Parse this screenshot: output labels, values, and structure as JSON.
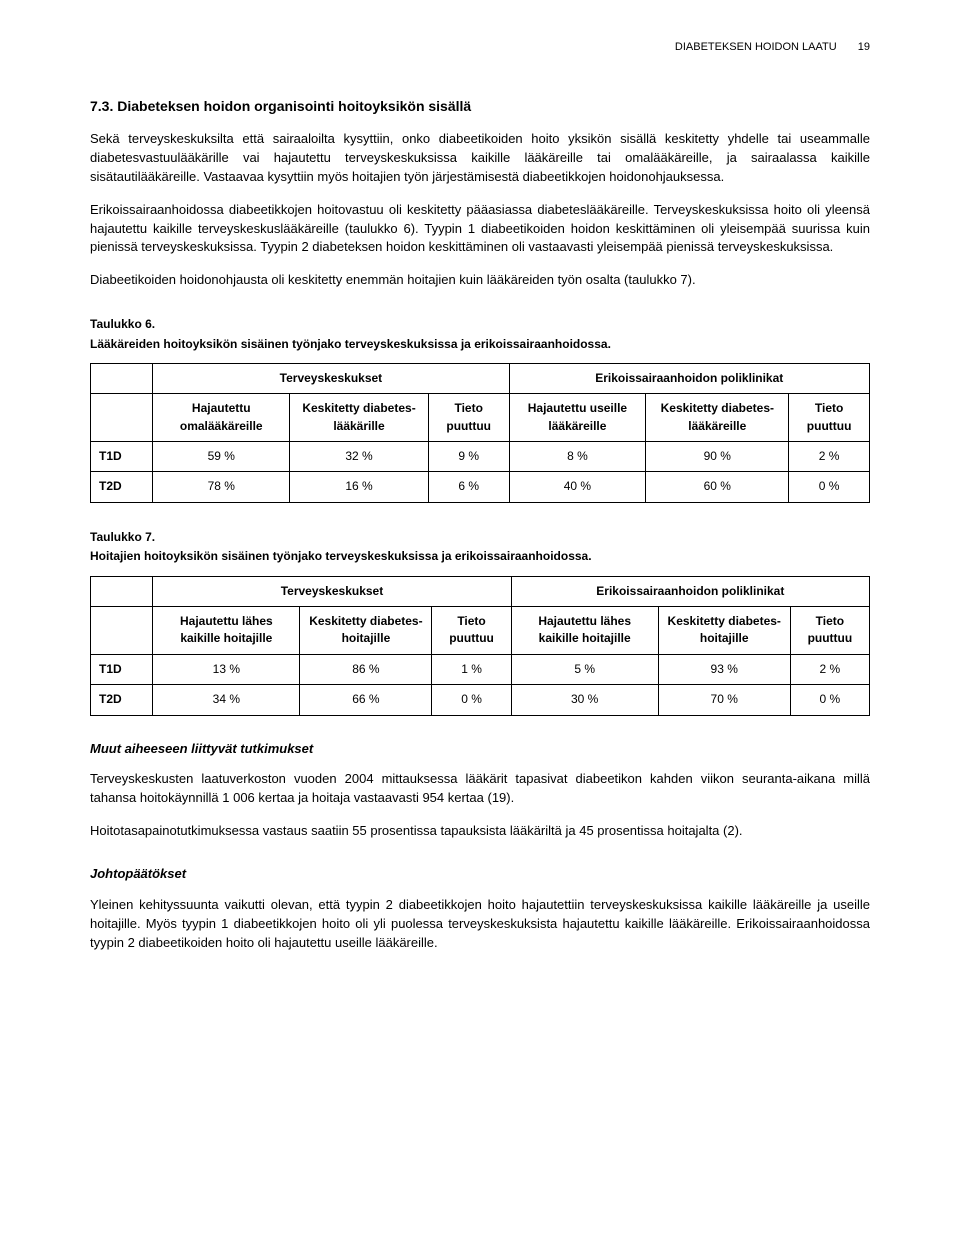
{
  "header": {
    "title": "DIABETEKSEN HOIDON LAATU",
    "page_number": "19"
  },
  "section": {
    "number_title": "7.3. Diabeteksen hoidon organisointi hoitoyksikön sisällä",
    "p1": "Sekä terveyskeskuksilta että sairaaloilta kysyttiin, onko diabeetikoiden hoito yksikön sisällä keskitetty yhdelle tai useammalle diabetesvastuulääkärille vai hajautettu terveyskeskuksissa kaikille lääkäreille tai omalääkäreille, ja sairaalassa kaikille sisätautilääkäreille. Vastaavaa kysyttiin myös hoitajien työn järjestämisestä diabeetikkojen hoidonohjauksessa.",
    "p2": "Erikoissairaanhoidossa diabeetikkojen hoitovastuu oli keskitetty pääasiassa diabeteslääkäreille. Terveyskeskuksissa hoito oli yleensä hajautettu kaikille terveyskeskuslääkäreille (taulukko 6). Tyypin 1 diabeetikoiden hoidon keskittäminen oli yleisempää suurissa kuin pienissä terveyskeskuksissa. Tyypin 2 diabeteksen hoidon keskittäminen oli vastaavasti yleisempää pienissä terveyskeskuksissa.",
    "p3": "Diabeetikoiden hoidonohjausta oli keskitetty enemmän hoitajien kuin lääkäreiden työn osalta (taulukko 7)."
  },
  "table6": {
    "caption": "Taulukko 6.",
    "subcaption": "Lääkäreiden hoitoyksikön sisäinen työnjako terveyskeskuksissa ja erikoissairaanhoidossa.",
    "group_headers": [
      "Terveyskeskukset",
      "Erikoissairaanhoidon poliklinikat"
    ],
    "sub_headers": [
      "Hajautettu omalääkäreille",
      "Keskitetty diabetes-lääkärille",
      "Tieto puuttuu",
      "Hajautettu useille lääkäreille",
      "Keskitetty diabetes-lääkäreille",
      "Tieto puuttuu"
    ],
    "rows": [
      {
        "label": "T1D",
        "cells": [
          "59 %",
          "32 %",
          "9 %",
          "8 %",
          "90 %",
          "2 %"
        ]
      },
      {
        "label": "T2D",
        "cells": [
          "78 %",
          "16 %",
          "6 %",
          "40 %",
          "60 %",
          "0 %"
        ]
      }
    ]
  },
  "table7": {
    "caption": "Taulukko 7.",
    "subcaption": "Hoitajien hoitoyksikön sisäinen työnjako terveyskeskuksissa ja erikoissairaanhoidossa.",
    "group_headers": [
      "Terveyskeskukset",
      "Erikoissairaanhoidon poliklinikat"
    ],
    "sub_headers": [
      "Hajautettu lähes kaikille hoitajille",
      "Keskitetty diabetes-hoitajille",
      "Tieto puuttuu",
      "Hajautettu lähes kaikille hoitajille",
      "Keskitetty diabetes-hoitajille",
      "Tieto puuttuu"
    ],
    "rows": [
      {
        "label": "T1D",
        "cells": [
          "13 %",
          "86 %",
          "1 %",
          "5 %",
          "93 %",
          "2 %"
        ]
      },
      {
        "label": "T2D",
        "cells": [
          "34 %",
          "66 %",
          "0 %",
          "30 %",
          "70 %",
          "0 %"
        ]
      }
    ]
  },
  "related": {
    "heading": "Muut aiheeseen liittyvät tutkimukset",
    "p1": "Terveyskeskusten laatuverkoston vuoden 2004 mittauksessa lääkärit tapasivat diabeetikon kahden viikon seuranta-aikana millä tahansa hoitokäynnillä 1 006 kertaa ja hoitaja vastaavasti 954 kertaa (19).",
    "p2": "Hoitotasapainotutkimuksessa vastaus saatiin 55 prosentissa tapauksista lääkäriltä ja 45 prosentissa hoitajalta (2)."
  },
  "conclusions": {
    "heading": "Johtopäätökset",
    "p1": "Yleinen kehityssuunta vaikutti olevan, että tyypin 2 diabeetikkojen hoito hajautettiin terveyskeskuksissa kaikille lääkäreille ja useille hoitajille. Myös tyypin 1 diabeetikkojen hoito oli yli puolessa terveyskeskuksista hajautettu kaikille lääkäreille. Erikoissairaanhoidossa tyypin 2 diabeetikoiden hoito oli hajautettu useille lääkäreille."
  },
  "style": {
    "text_color": "#000000",
    "background_color": "#ffffff",
    "border_color": "#000000",
    "body_font_size_pt": 10,
    "heading_font_size_pt": 11,
    "table_font_size_pt": 9
  }
}
